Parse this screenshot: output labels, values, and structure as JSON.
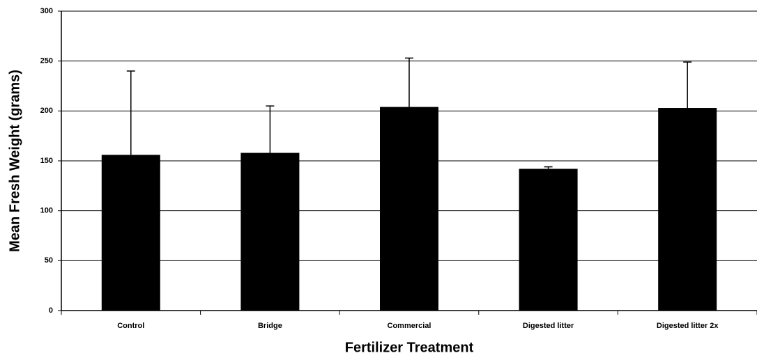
{
  "chart_data": {
    "type": "bar",
    "x_label": "Fertilizer Treatment",
    "y_label": "Mean Fresh Weight (grams)",
    "categories": [
      "Control",
      "Bridge",
      "Commercial",
      "Digested litter",
      "Digested litter 2x"
    ],
    "values": [
      156,
      158,
      204,
      142,
      203
    ],
    "errors": [
      84,
      47,
      49,
      2,
      46
    ],
    "color": "#000000",
    "ylim": [
      0,
      300
    ],
    "yticks": [
      0,
      50,
      100,
      150,
      200,
      250,
      300
    ],
    "grid": true
  }
}
